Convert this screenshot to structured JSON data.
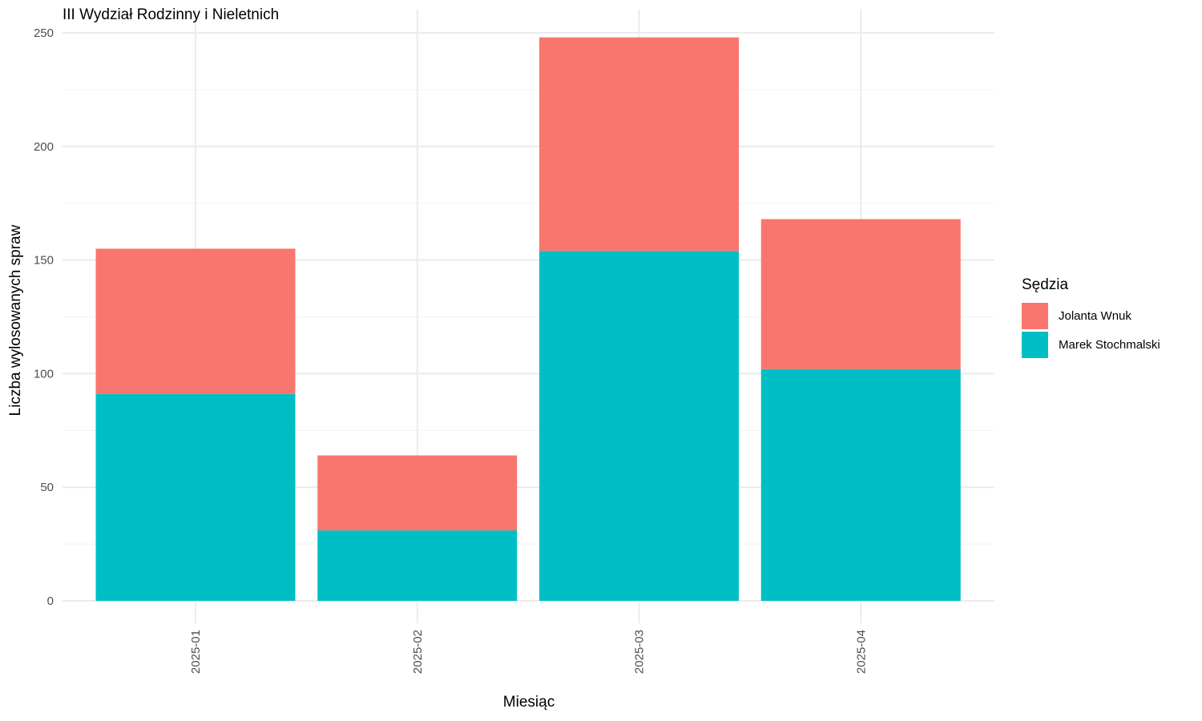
{
  "chart_data": {
    "type": "bar",
    "stacked": true,
    "title": "III Wydział Rodzinny i Nieletnich",
    "xlabel": "Miesiąc",
    "ylabel": "Liczba wylosowanych spraw",
    "categories": [
      "2025-01",
      "2025-02",
      "2025-03",
      "2025-04"
    ],
    "ylim": [
      0,
      250
    ],
    "yticks": [
      0,
      50,
      100,
      150,
      200,
      250
    ],
    "grid": true,
    "legend": {
      "title": "Sędzia",
      "placement": "right"
    },
    "series": [
      {
        "name": "Marek Stochmalski",
        "color": "#00BFC4",
        "values": [
          91,
          31,
          154,
          102
        ]
      },
      {
        "name": "Jolanta Wnuk",
        "color": "#F8766D",
        "values": [
          64,
          33,
          94,
          66
        ]
      }
    ],
    "legend_order": [
      "Jolanta Wnuk",
      "Marek Stochmalski"
    ]
  }
}
